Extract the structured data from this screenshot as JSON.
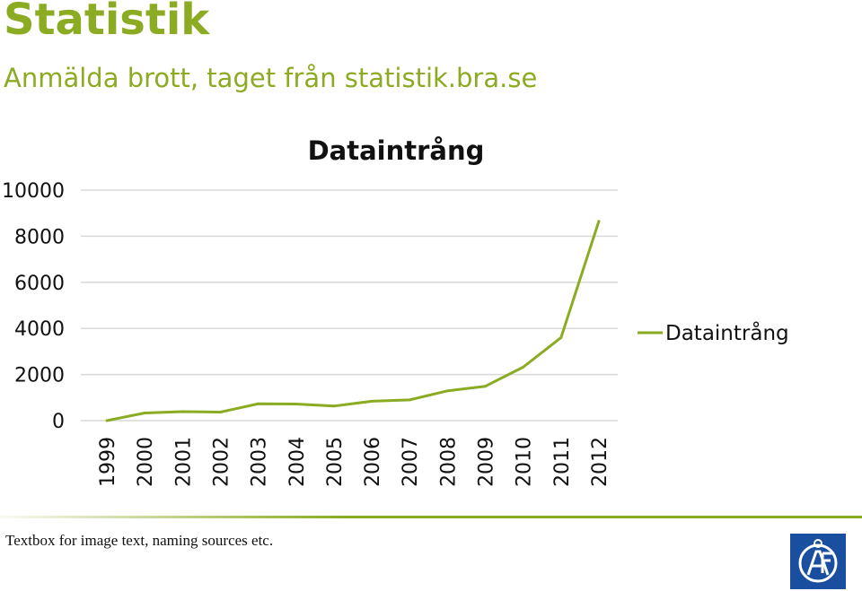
{
  "header": {
    "title": "Statistik",
    "subtitle": "Anmälda brott, taget från statistik.bra.se"
  },
  "footer": {
    "caption": "Textbox for image text, naming sources etc.",
    "logo_icon": "af-logo-icon"
  },
  "colors": {
    "accent": "#8aab22",
    "line": "#8aab22",
    "grid": "#d9d9d9",
    "logo_blue": "#1a4fa0"
  },
  "chart_data": {
    "type": "line",
    "title": "Dataintrång",
    "xlabel": "",
    "ylabel": "",
    "categories": [
      "1999",
      "2000",
      "2001",
      "2002",
      "2003",
      "2004",
      "2005",
      "2006",
      "2007",
      "2008",
      "2009",
      "2010",
      "2011",
      "2012"
    ],
    "y_ticks": [
      "0",
      "2000",
      "4000",
      "6000",
      "8000",
      "10000"
    ],
    "ylim": [
      0,
      10000
    ],
    "grid": true,
    "legend": "right",
    "series": [
      {
        "name": "Dataintrång",
        "values": [
          0,
          330,
          390,
          370,
          730,
          720,
          630,
          840,
          900,
          1290,
          1490,
          2320,
          3600,
          8650
        ]
      }
    ]
  }
}
